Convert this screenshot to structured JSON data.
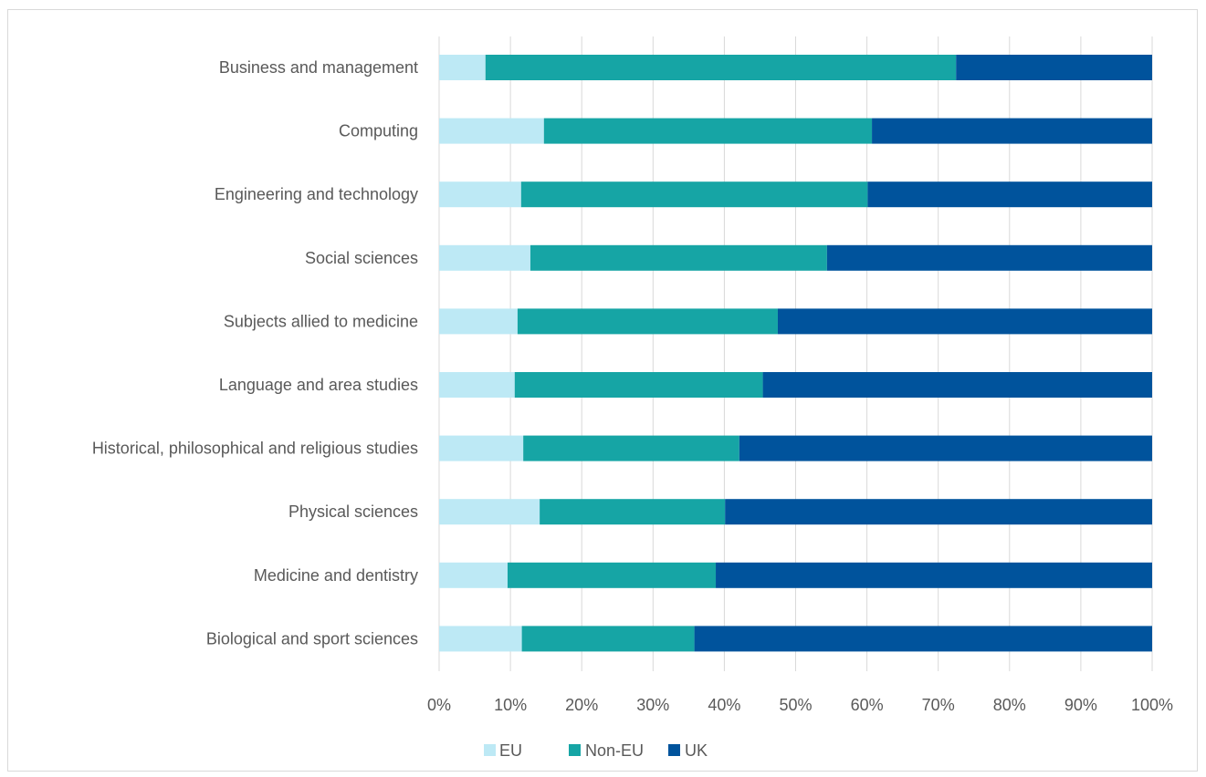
{
  "chart_data": {
    "type": "bar",
    "orientation": "horizontal",
    "stacked": "percent",
    "categories": [
      "Business and management",
      "Computing",
      "Engineering and technology",
      "Social sciences",
      "Subjects allied to medicine",
      "Language and area studies",
      "Historical, philosophical and religious studies",
      "Physical sciences",
      "Medicine and dentistry",
      "Biological and sport sciences"
    ],
    "series": [
      {
        "name": "EU",
        "color": "#BDE9F5",
        "values": [
          6.5,
          14.7,
          11.5,
          12.8,
          11.0,
          10.6,
          11.8,
          14.1,
          9.6,
          11.6
        ]
      },
      {
        "name": "Non-EU",
        "color": "#16A5A5",
        "values": [
          66.0,
          46.0,
          48.6,
          41.6,
          36.5,
          34.8,
          30.3,
          26.0,
          29.2,
          24.2
        ]
      },
      {
        "name": "UK",
        "color": "#00539C",
        "values": [
          27.5,
          39.3,
          39.9,
          45.6,
          52.5,
          54.6,
          57.9,
          59.9,
          61.2,
          64.2
        ]
      }
    ],
    "xlim": [
      0,
      100
    ],
    "xticks": [
      "0%",
      "10%",
      "20%",
      "30%",
      "40%",
      "50%",
      "60%",
      "70%",
      "80%",
      "90%",
      "100%"
    ],
    "grid": true,
    "legend_position": "bottom"
  }
}
